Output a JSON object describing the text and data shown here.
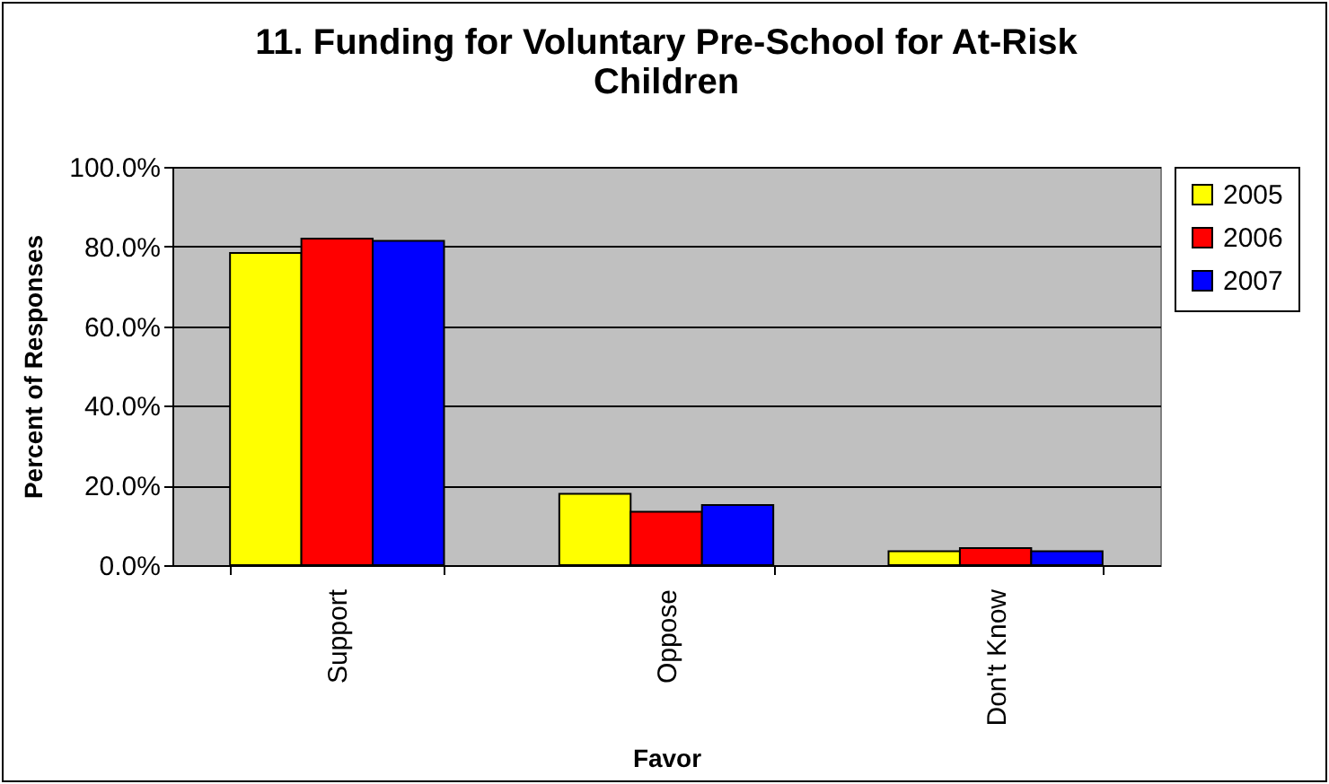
{
  "chart_data": {
    "type": "bar",
    "title": "11. Funding for Voluntary Pre-School for At-Risk Children",
    "xlabel": "Favor",
    "ylabel": "Percent of Responses",
    "categories": [
      "Support",
      "Oppose",
      "Don't Know"
    ],
    "series": [
      {
        "name": "2005",
        "color": "#ffff00",
        "values": [
          78.4,
          17.9,
          3.5
        ]
      },
      {
        "name": "2006",
        "color": "#ff0000",
        "values": [
          82.0,
          13.4,
          4.3
        ]
      },
      {
        "name": "2007",
        "color": "#0000ff",
        "values": [
          81.4,
          15.1,
          3.5
        ]
      }
    ],
    "ylim": [
      0,
      100
    ],
    "yticks": [
      {
        "value": 0,
        "label": "0.0%"
      },
      {
        "value": 20,
        "label": "20.0%"
      },
      {
        "value": 40,
        "label": "40.0%"
      },
      {
        "value": 60,
        "label": "60.0%"
      },
      {
        "value": 80,
        "label": "80.0%"
      },
      {
        "value": 100,
        "label": "100.0%"
      }
    ],
    "grid": "y",
    "legend": "right"
  }
}
